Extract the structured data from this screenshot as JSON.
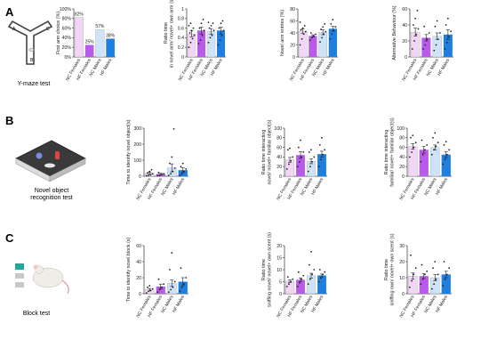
{
  "panels": [
    {
      "letter": "A",
      "test_label": "Y-maze test"
    },
    {
      "letter": "B",
      "test_label": "Novel object\nrecognition test"
    },
    {
      "letter": "C",
      "test_label": "Block test"
    }
  ],
  "maze_arm_labels": [
    "A",
    "B",
    "C"
  ],
  "group_labels": [
    "NC Females",
    "HF Females",
    "NC Males",
    "HF Males"
  ],
  "colors": {
    "nc_females": "#f1d6f6",
    "hf_females": "#b75be8",
    "nc_males": "#cfe3f8",
    "hf_males": "#1f7fe0",
    "dots": "#222222"
  },
  "chart_data": [
    {
      "id": "A1",
      "type": "bar",
      "ylabel": "First arm choice (%)",
      "ylim": [
        0,
        100
      ],
      "yticks": [
        0,
        20,
        40,
        60,
        80,
        100
      ],
      "tick_suffix": "%",
      "categories": [
        "NC Females",
        "HF Females",
        "NC Males",
        "HF Males"
      ],
      "values": [
        82,
        25,
        57,
        38
      ],
      "data_labels": [
        "82%",
        "25%",
        "57%",
        "38%"
      ],
      "errors": [
        0,
        0,
        0,
        0
      ],
      "points": []
    },
    {
      "id": "A2",
      "type": "bar",
      "ylabel": "Ratio time\nin novel arm/ novel+ own arm (s)",
      "ylim": [
        0,
        1.0
      ],
      "yticks": [
        0,
        0.2,
        0.4,
        0.6,
        0.8,
        1.0
      ],
      "categories": [
        "NC Females",
        "HF Females",
        "NC Males",
        "HF Males"
      ],
      "values": [
        0.48,
        0.55,
        0.53,
        0.55
      ],
      "errors": [
        0.06,
        0.07,
        0.06,
        0.07
      ],
      "points": [
        [
          0.2,
          0.3,
          0.38,
          0.45,
          0.5,
          0.55,
          0.6,
          0.65,
          0.7
        ],
        [
          0.28,
          0.35,
          0.45,
          0.55,
          0.6,
          0.7,
          0.78
        ],
        [
          0.3,
          0.4,
          0.45,
          0.55,
          0.6,
          0.65,
          0.7,
          0.72
        ],
        [
          0.25,
          0.35,
          0.45,
          0.55,
          0.6,
          0.7,
          0.75
        ]
      ]
    },
    {
      "id": "A3",
      "type": "bar",
      "ylabel": "Novel arm entries (%)",
      "ylim": [
        0,
        80
      ],
      "yticks": [
        0,
        20,
        40,
        60,
        80
      ],
      "categories": [
        "NC Females",
        "HF Females",
        "NC Males",
        "HF Males"
      ],
      "values": [
        43,
        35,
        41,
        47
      ],
      "errors": [
        4,
        2,
        4,
        4
      ],
      "points": [
        [
          20,
          30,
          38,
          42,
          45,
          48,
          52,
          58
        ],
        [
          28,
          32,
          35,
          38,
          40
        ],
        [
          25,
          32,
          38,
          42,
          46,
          50,
          55
        ],
        [
          30,
          38,
          44,
          50,
          55,
          62
        ]
      ]
    },
    {
      "id": "A4",
      "type": "bar",
      "ylabel": "Alternative Behaviour (%)",
      "ylim": [
        0,
        60
      ],
      "yticks": [
        0,
        20,
        40,
        60
      ],
      "categories": [
        "NC Females",
        "HF Females",
        "NC Males",
        "HF Males"
      ],
      "values": [
        31,
        24,
        26,
        28
      ],
      "errors": [
        5,
        4,
        4,
        6
      ],
      "points": [
        [
          10,
          20,
          28,
          35,
          40,
          48,
          58
        ],
        [
          10,
          15,
          22,
          30,
          38
        ],
        [
          8,
          15,
          22,
          30,
          38,
          45
        ],
        [
          10,
          18,
          25,
          32,
          40,
          48
        ]
      ]
    },
    {
      "id": "B1",
      "type": "bar",
      "ylabel": "Time to identify novel object(s)",
      "ylim": [
        0,
        300
      ],
      "yticks": [
        0,
        100,
        200,
        300
      ],
      "categories": [
        "NC Females",
        "HF Females",
        "NC Males",
        "HF Males"
      ],
      "values": [
        18,
        14,
        52,
        38
      ],
      "errors": [
        6,
        5,
        25,
        15
      ],
      "points": [
        [
          3,
          5,
          8,
          15,
          20,
          30,
          40
        ],
        [
          3,
          5,
          10,
          15,
          22
        ],
        [
          5,
          15,
          30,
          50,
          80,
          120,
          295
        ],
        [
          5,
          15,
          30,
          45,
          60,
          80
        ]
      ]
    },
    {
      "id": "B2",
      "type": "bar",
      "ylabel": "Ratio time interacting\nnovel/ novel+ familiar object(s)",
      "ylim": [
        0,
        100
      ],
      "yticks": [
        0,
        20,
        40,
        60,
        80,
        100
      ],
      "categories": [
        "NC Females",
        "HF Females",
        "NC Males",
        "HF Males"
      ],
      "values": [
        34,
        44,
        31,
        46
      ],
      "errors": [
        5,
        7,
        5,
        6
      ],
      "points": [
        [
          15,
          25,
          32,
          40,
          55,
          58
        ],
        [
          20,
          30,
          40,
          50,
          60,
          75
        ],
        [
          10,
          20,
          30,
          40,
          50,
          55
        ],
        [
          20,
          35,
          45,
          55,
          65,
          80
        ]
      ]
    },
    {
      "id": "B3",
      "type": "bar",
      "ylabel": "Ratio time interacting\nfamiliar/ novel+ familiar object(s)",
      "ylim": [
        0,
        100
      ],
      "yticks": [
        0,
        20,
        40,
        60,
        80,
        100
      ],
      "categories": [
        "NC Females",
        "HF Females",
        "NC Males",
        "HF Males"
      ],
      "values": [
        62,
        55,
        60,
        45
      ],
      "errors": [
        6,
        7,
        5,
        6
      ],
      "points": [
        [
          40,
          50,
          60,
          70,
          80,
          85
        ],
        [
          30,
          45,
          55,
          65,
          75
        ],
        [
          45,
          55,
          62,
          70,
          80,
          90
        ],
        [
          25,
          35,
          45,
          55,
          65,
          72
        ]
      ]
    },
    {
      "id": "C1",
      "type": "bar",
      "ylabel": "Time to identify novel block (s)",
      "ylim": [
        0,
        60
      ],
      "yticks": [
        0,
        20,
        40,
        60
      ],
      "categories": [
        "NC Females",
        "HF Females",
        "NC Males",
        "HF Males"
      ],
      "values": [
        5,
        9,
        13,
        15
      ],
      "errors": [
        1.5,
        3,
        4,
        5
      ],
      "points": [
        [
          1,
          3,
          4,
          6,
          8,
          10
        ],
        [
          2,
          5,
          8,
          12,
          18
        ],
        [
          2,
          5,
          8,
          15,
          30,
          51
        ],
        [
          3,
          8,
          12,
          20,
          32
        ]
      ]
    },
    {
      "id": "C2",
      "type": "bar",
      "ylabel": "Ratio time\nsniffing novel/ novel+ own scent (s)",
      "ylim": [
        0,
        20
      ],
      "yticks": [
        0,
        5,
        10,
        15,
        20
      ],
      "categories": [
        "NC Females",
        "HF Females",
        "NC Males",
        "HF Males"
      ],
      "values": [
        5.2,
        5.8,
        7.5,
        7.6
      ],
      "errors": [
        0.5,
        0.8,
        1.0,
        0.6
      ],
      "points": [
        [
          3,
          4,
          5,
          6,
          7
        ],
        [
          3,
          4.5,
          6,
          7.5,
          9
        ],
        [
          4,
          6,
          8,
          10,
          12,
          17.5
        ],
        [
          5,
          6.5,
          8,
          9,
          10
        ]
      ]
    },
    {
      "id": "C3",
      "type": "bar",
      "ylabel": "Ratio time\nsniffing own/ novel+ own scent (s)",
      "ylim": [
        0,
        30
      ],
      "yticks": [
        0,
        10,
        20,
        30
      ],
      "categories": [
        "NC Females",
        "HF Females",
        "NC Males",
        "HF Males"
      ],
      "values": [
        11,
        11,
        10,
        12
      ],
      "errors": [
        2,
        1.5,
        2,
        2
      ],
      "points": [
        [
          4,
          8,
          12,
          16,
          24
        ],
        [
          6,
          9,
          12,
          14,
          18
        ],
        [
          3,
          6,
          9,
          12,
          16,
          20
        ],
        [
          5,
          9,
          12,
          16,
          20
        ]
      ]
    }
  ]
}
